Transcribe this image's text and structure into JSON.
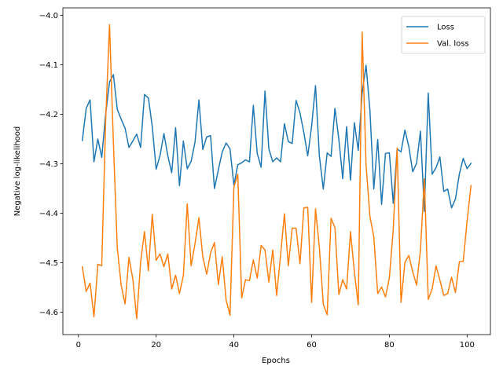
{
  "chart_data": {
    "type": "line",
    "title": "",
    "xlabel": "Epochs",
    "ylabel": "Negative log-likelihood",
    "xlim": [
      -4,
      106
    ],
    "ylim": [
      -4.645,
      -3.985
    ],
    "xticks": [
      0,
      20,
      40,
      60,
      80,
      100
    ],
    "xtick_labels": [
      "0",
      "20",
      "40",
      "60",
      "80",
      "100"
    ],
    "yticks": [
      -4.6,
      -4.5,
      -4.4,
      -4.3,
      -4.2,
      -4.1,
      -4.0
    ],
    "ytick_labels": [
      "−4.6",
      "−4.5",
      "−4.4",
      "−4.3",
      "−4.2",
      "−4.1",
      "−4.0"
    ],
    "grid": false,
    "legend_position": "top-right",
    "x": [
      1,
      2,
      3,
      4,
      5,
      6,
      7,
      8,
      9,
      10,
      11,
      12,
      13,
      14,
      15,
      16,
      17,
      18,
      19,
      20,
      21,
      22,
      23,
      24,
      25,
      26,
      27,
      28,
      29,
      30,
      31,
      32,
      33,
      34,
      35,
      36,
      37,
      38,
      39,
      40,
      41,
      42,
      43,
      44,
      45,
      46,
      47,
      48,
      49,
      50,
      51,
      52,
      53,
      54,
      55,
      56,
      57,
      58,
      59,
      60,
      61,
      62,
      63,
      64,
      65,
      66,
      67,
      68,
      69,
      70,
      71,
      72,
      73,
      74,
      75,
      76,
      77,
      78,
      79,
      80,
      81,
      82,
      83,
      84,
      85,
      86,
      87,
      88,
      89,
      90,
      91,
      92,
      93,
      94,
      95,
      96,
      97,
      98,
      99,
      100,
      101
    ],
    "series": [
      {
        "name": "Loss",
        "color": "#1f77b4",
        "values": [
          -4.253,
          -4.188,
          -4.171,
          -4.296,
          -4.25,
          -4.287,
          -4.2,
          -4.135,
          -4.12,
          -4.19,
          -4.21,
          -4.228,
          -4.267,
          -4.254,
          -4.24,
          -4.267,
          -4.16,
          -4.167,
          -4.225,
          -4.311,
          -4.283,
          -4.239,
          -4.284,
          -4.318,
          -4.227,
          -4.344,
          -4.254,
          -4.31,
          -4.295,
          -4.256,
          -4.171,
          -4.271,
          -4.246,
          -4.243,
          -4.35,
          -4.312,
          -4.276,
          -4.258,
          -4.27,
          -4.343,
          -4.302,
          -4.298,
          -4.292,
          -4.296,
          -4.182,
          -4.279,
          -4.307,
          -4.153,
          -4.27,
          -4.296,
          -4.288,
          -4.296,
          -4.219,
          -4.255,
          -4.259,
          -4.172,
          -4.197,
          -4.237,
          -4.284,
          -4.224,
          -4.142,
          -4.285,
          -4.351,
          -4.278,
          -4.285,
          -4.188,
          -4.25,
          -4.33,
          -4.225,
          -4.333,
          -4.217,
          -4.273,
          -4.157,
          -4.101,
          -4.192,
          -4.351,
          -4.251,
          -4.382,
          -4.279,
          -4.278,
          -4.38,
          -4.27,
          -4.276,
          -4.232,
          -4.265,
          -4.316,
          -4.299,
          -4.234,
          -4.396,
          -4.157,
          -4.321,
          -4.308,
          -4.286,
          -4.356,
          -4.351,
          -4.389,
          -4.371,
          -4.321,
          -4.289,
          -4.31,
          -4.299
        ]
      },
      {
        "name": "Val. loss",
        "color": "#ff7f0e",
        "values": [
          -4.508,
          -4.558,
          -4.541,
          -4.609,
          -4.503,
          -4.506,
          -4.214,
          -4.019,
          -4.258,
          -4.47,
          -4.545,
          -4.583,
          -4.489,
          -4.533,
          -4.613,
          -4.499,
          -4.437,
          -4.516,
          -4.402,
          -4.495,
          -4.482,
          -4.508,
          -4.482,
          -4.553,
          -4.525,
          -4.562,
          -4.526,
          -4.381,
          -4.506,
          -4.461,
          -4.409,
          -4.488,
          -4.523,
          -4.48,
          -4.459,
          -4.544,
          -4.488,
          -4.575,
          -4.606,
          -4.347,
          -4.321,
          -4.571,
          -4.534,
          -4.536,
          -4.494,
          -4.531,
          -4.465,
          -4.474,
          -4.539,
          -4.474,
          -4.566,
          -4.485,
          -4.401,
          -4.506,
          -4.43,
          -4.43,
          -4.502,
          -4.389,
          -4.388,
          -4.58,
          -4.391,
          -4.47,
          -4.584,
          -4.605,
          -4.41,
          -4.429,
          -4.564,
          -4.534,
          -4.553,
          -4.437,
          -4.519,
          -4.585,
          -4.034,
          -4.302,
          -4.406,
          -4.448,
          -4.562,
          -4.549,
          -4.569,
          -4.53,
          -4.433,
          -4.268,
          -4.58,
          -4.499,
          -4.485,
          -4.518,
          -4.545,
          -4.474,
          -4.33,
          -4.574,
          -4.553,
          -4.506,
          -4.535,
          -4.566,
          -4.562,
          -4.529,
          -4.56,
          -4.498,
          -4.497,
          -4.415,
          -4.344
        ]
      }
    ]
  }
}
